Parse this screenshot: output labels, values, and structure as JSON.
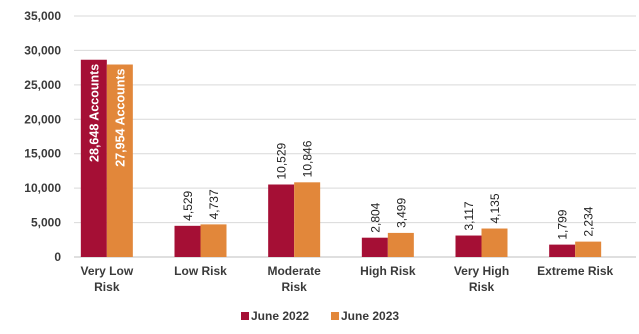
{
  "chart_data": {
    "type": "bar",
    "categories": [
      [
        "Very Low",
        "Risk"
      ],
      [
        "Low Risk"
      ],
      [
        "Moderate",
        "Risk"
      ],
      [
        "High Risk"
      ],
      [
        "Very High",
        "Risk"
      ],
      [
        "Extreme Risk"
      ]
    ],
    "series": [
      {
        "name": "June 2022",
        "color": "#a50f35",
        "values": [
          28648,
          4529,
          10529,
          2804,
          3117,
          1799
        ],
        "labels": [
          "28,648 Accounts",
          "4,529",
          "10,529",
          "2,804",
          "3,117",
          "1,799"
        ]
      },
      {
        "name": "June 2023",
        "color": "#e2873a",
        "values": [
          27954,
          4737,
          10846,
          3499,
          4135,
          2234
        ],
        "labels": [
          "27,954 Accounts",
          "4,737",
          "10,846",
          "3,499",
          "4,135",
          "2,234"
        ]
      }
    ],
    "ylim": [
      0,
      35000
    ],
    "yticks": [
      "0",
      "5,000",
      "10,000",
      "15,000",
      "20,000",
      "25,000",
      "30,000",
      "35,000"
    ],
    "ytick_values": [
      0,
      5000,
      10000,
      15000,
      20000,
      25000,
      30000,
      35000
    ],
    "grid": true,
    "legend_position": "bottom"
  }
}
